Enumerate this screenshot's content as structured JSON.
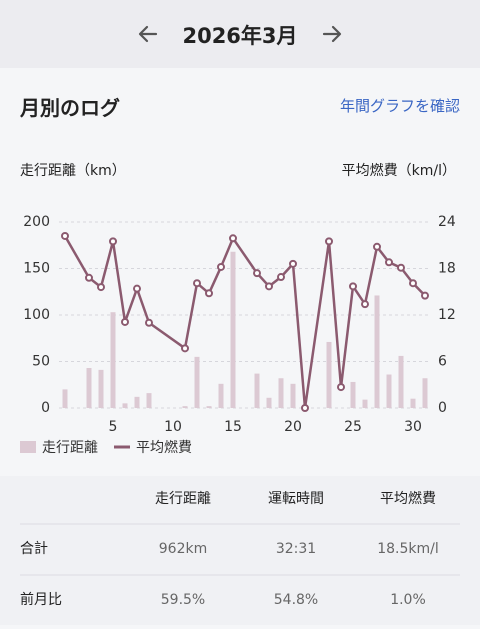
{
  "header": {
    "title": "2026年3月"
  },
  "section": {
    "title": "月別のログ",
    "link": "年間グラフを確認"
  },
  "chart_data": {
    "type": "bar_line",
    "y_label": "走行距離（km）",
    "y2_label": "平均燃費（km/l）",
    "xlim": [
      0.5,
      31.5
    ],
    "xticks": [
      5,
      10,
      15,
      20,
      25,
      30
    ],
    "ylim": [
      0,
      200
    ],
    "yticks": [
      0,
      50,
      100,
      150,
      200
    ],
    "y2lim": [
      0,
      24
    ],
    "y2ticks": [
      0,
      6,
      12,
      18,
      24
    ],
    "grid": true,
    "legend": "bottom-left",
    "series": [
      {
        "name": "走行距離",
        "type": "bar",
        "color": "#dcc9d3",
        "x": [
          1,
          3,
          4,
          5,
          6,
          7,
          8,
          11,
          12,
          13,
          14,
          15,
          17,
          18,
          19,
          20,
          23,
          25,
          26,
          27,
          28,
          29,
          30,
          31
        ],
        "values": [
          20,
          43,
          41,
          103,
          5,
          12,
          16,
          2,
          55,
          2,
          26,
          168,
          37,
          11,
          32,
          26,
          71,
          28,
          9,
          121,
          36,
          56,
          10,
          32
        ]
      },
      {
        "name": "平均燃費",
        "type": "line",
        "color": "#8b5a6f",
        "axis": "y2",
        "x": [
          1,
          3,
          4,
          5,
          6,
          7,
          8,
          11,
          12,
          13,
          14,
          15,
          17,
          18,
          19,
          20,
          21,
          23,
          24,
          25,
          26,
          27,
          28,
          29,
          30,
          31
        ],
        "values": [
          22.2,
          16.8,
          15.6,
          21.5,
          11.1,
          15.4,
          11.0,
          7.7,
          16.1,
          14.8,
          18.2,
          21.9,
          17.4,
          15.7,
          16.9,
          18.6,
          0,
          21.5,
          2.7,
          15.7,
          13.4,
          20.8,
          18.8,
          18.1,
          16.1,
          14.5
        ]
      }
    ]
  },
  "table": {
    "columns": [
      "走行距離",
      "運転時間",
      "平均燃費"
    ],
    "rows": [
      [
        "合計",
        "962km",
        "32:31",
        "18.5km/l"
      ],
      [
        "前月比",
        "59.5%",
        "54.8%",
        "1.0%"
      ]
    ]
  }
}
